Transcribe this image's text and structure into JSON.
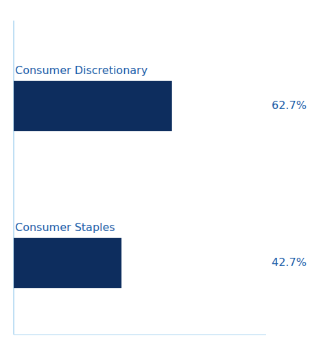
{
  "chart_data": {
    "type": "bar",
    "orientation": "horizontal",
    "categories": [
      "Consumer Discretionary",
      "Consumer Staples"
    ],
    "values": [
      62.7,
      42.7
    ],
    "value_labels": [
      "62.7%",
      "42.7%"
    ],
    "data_labels": true,
    "color": "#0d2d5e",
    "xlim": [
      0,
      100
    ],
    "xticks": [],
    "tick_labels": false
  }
}
